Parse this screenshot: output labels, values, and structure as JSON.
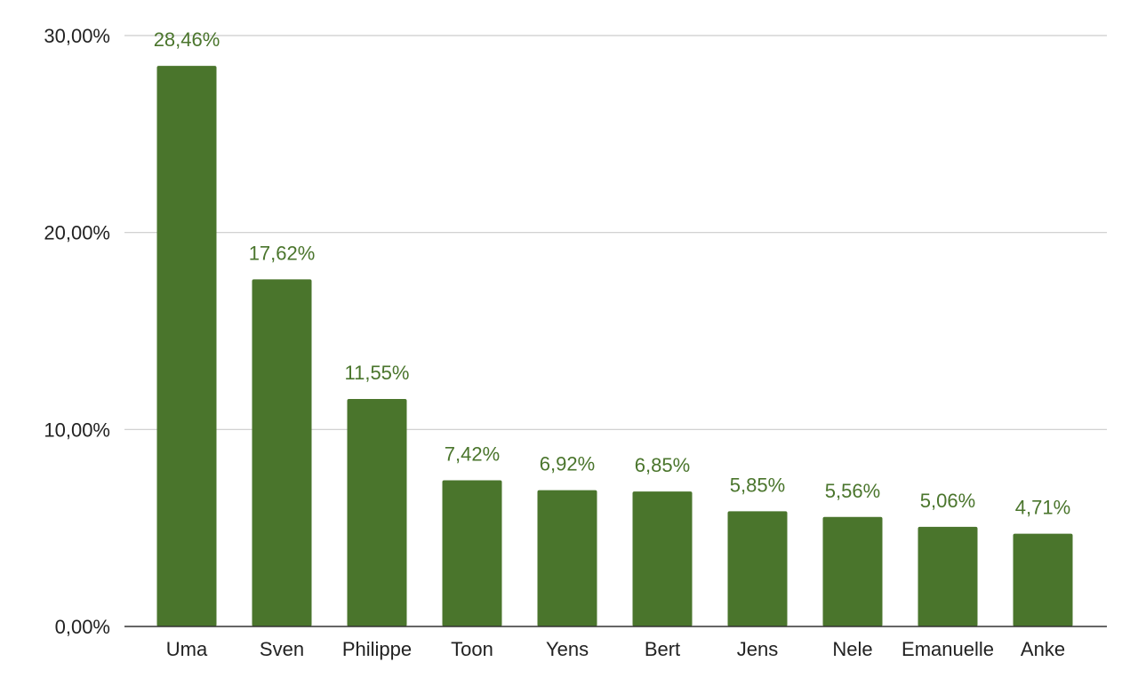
{
  "chart_data": {
    "type": "bar",
    "title": "",
    "xlabel": "",
    "ylabel": "",
    "categories": [
      "Uma",
      "Sven",
      "Philippe",
      "Toon",
      "Yens",
      "Bert",
      "Jens",
      "Nele",
      "Emanuelle",
      "Anke"
    ],
    "values": [
      28.46,
      17.62,
      11.55,
      7.42,
      6.92,
      6.85,
      5.85,
      5.56,
      5.06,
      4.71
    ],
    "value_labels": [
      "28,46%",
      "17,62%",
      "11,55%",
      "7,42%",
      "6,92%",
      "6,85%",
      "5,85%",
      "5,56%",
      "5,06%",
      "4,71%"
    ],
    "ylim": [
      0,
      30
    ],
    "yticks": [
      0,
      10,
      20,
      30
    ],
    "ytick_labels": [
      "0,00%",
      "10,00%",
      "20,00%",
      "30,00%"
    ],
    "grid": true,
    "legend": "none",
    "colors": {
      "bar": "#4a752c",
      "label": "#4a752c"
    }
  }
}
